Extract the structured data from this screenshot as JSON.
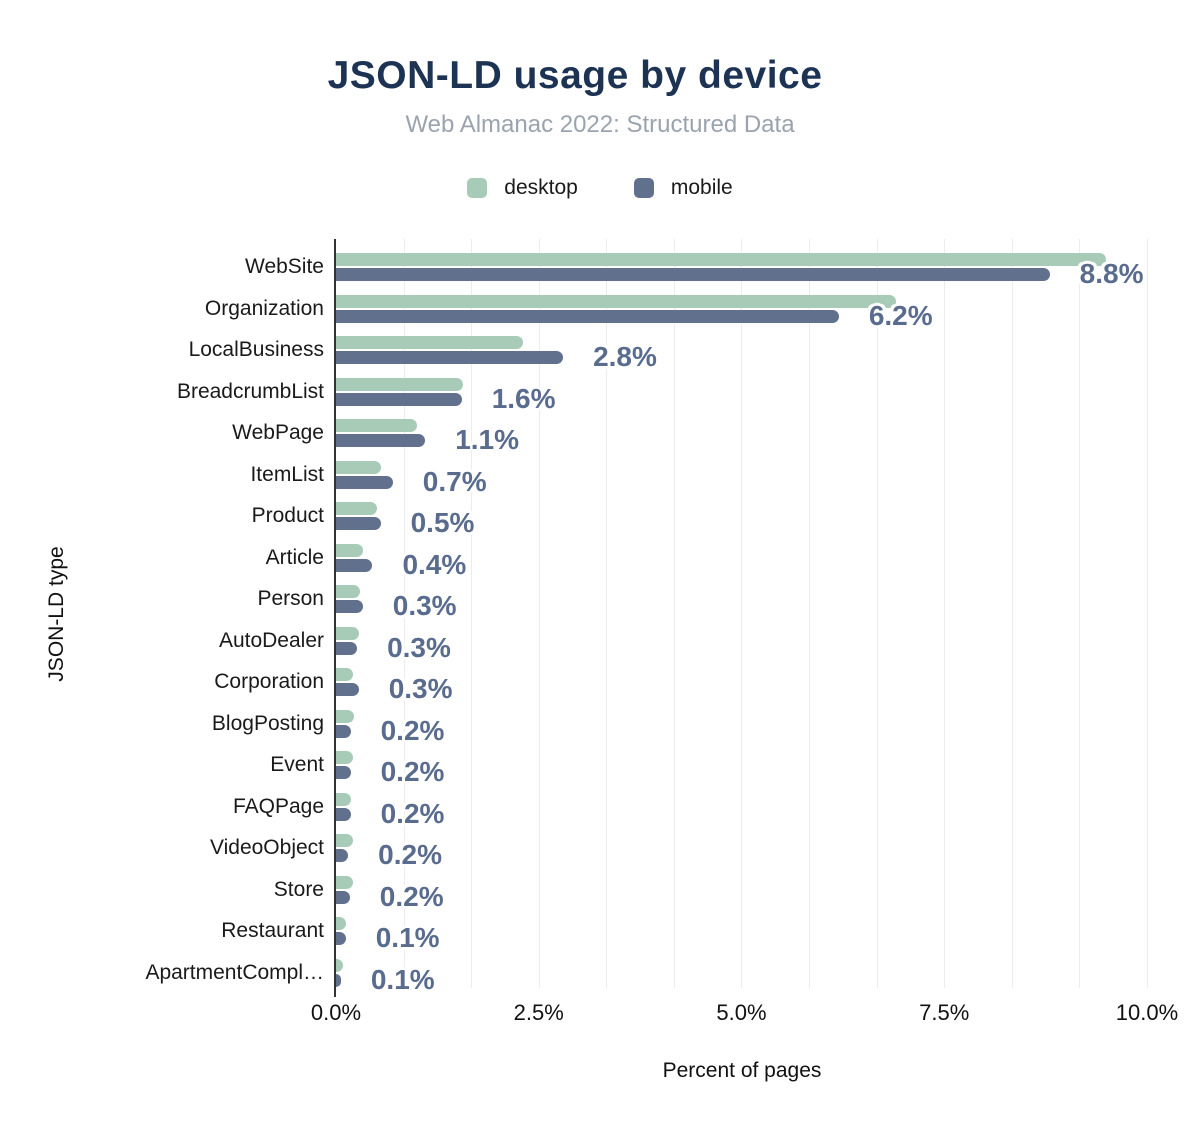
{
  "chart_data": {
    "type": "bar",
    "orientation": "horizontal",
    "title": "JSON-LD usage by device",
    "subtitle": "Web Almanac 2022: Structured Data",
    "xlabel": "Percent of pages",
    "ylabel": "JSON-LD type",
    "xlim": [
      0,
      10.25
    ],
    "x_ticks": [
      "0.0%",
      "2.5%",
      "5.0%",
      "7.5%",
      "10.0%"
    ],
    "x_tick_values": [
      0,
      2.5,
      5.0,
      7.5,
      10.0
    ],
    "minor_gridline_step_pct": 0.8333,
    "grid": true,
    "legend_position": "top-center",
    "legend": [
      {
        "name": "desktop",
        "color": "#a8cbb8"
      },
      {
        "name": "mobile",
        "color": "#60708d"
      }
    ],
    "categories": [
      "WebSite",
      "Organization",
      "LocalBusiness",
      "BreadcrumbList",
      "WebPage",
      "ItemList",
      "Product",
      "Article",
      "Person",
      "AutoDealer",
      "Corporation",
      "BlogPosting",
      "Event",
      "FAQPage",
      "VideoObject",
      "Store",
      "Restaurant",
      "ApartmentCompl…"
    ],
    "series": [
      {
        "name": "desktop",
        "color": "#a8cbb8",
        "values": [
          9.5,
          6.9,
          2.3,
          1.57,
          1.0,
          0.55,
          0.5,
          0.33,
          0.29,
          0.28,
          0.21,
          0.22,
          0.21,
          0.19,
          0.21,
          0.21,
          0.12,
          0.09
        ]
      },
      {
        "name": "mobile",
        "color": "#60708d",
        "values": [
          8.8,
          6.2,
          2.8,
          1.55,
          1.1,
          0.7,
          0.55,
          0.45,
          0.33,
          0.26,
          0.28,
          0.18,
          0.18,
          0.18,
          0.15,
          0.17,
          0.12,
          0.06
        ]
      }
    ],
    "value_labels": [
      "8.8%",
      "6.2%",
      "2.8%",
      "1.6%",
      "1.1%",
      "0.7%",
      "0.5%",
      "0.4%",
      "0.3%",
      "0.3%",
      "0.3%",
      "0.2%",
      "0.2%",
      "0.2%",
      "0.2%",
      "0.2%",
      "0.1%",
      "0.1%"
    ],
    "value_labels_series": "mobile",
    "colors": {
      "title": "#1d3354",
      "subtitle": "#9aa3ae",
      "value_label": "#5a6c8e",
      "desktop": "#a8cbb8",
      "mobile": "#60708d",
      "gridline": "#ececec",
      "axis": "#333333"
    }
  }
}
